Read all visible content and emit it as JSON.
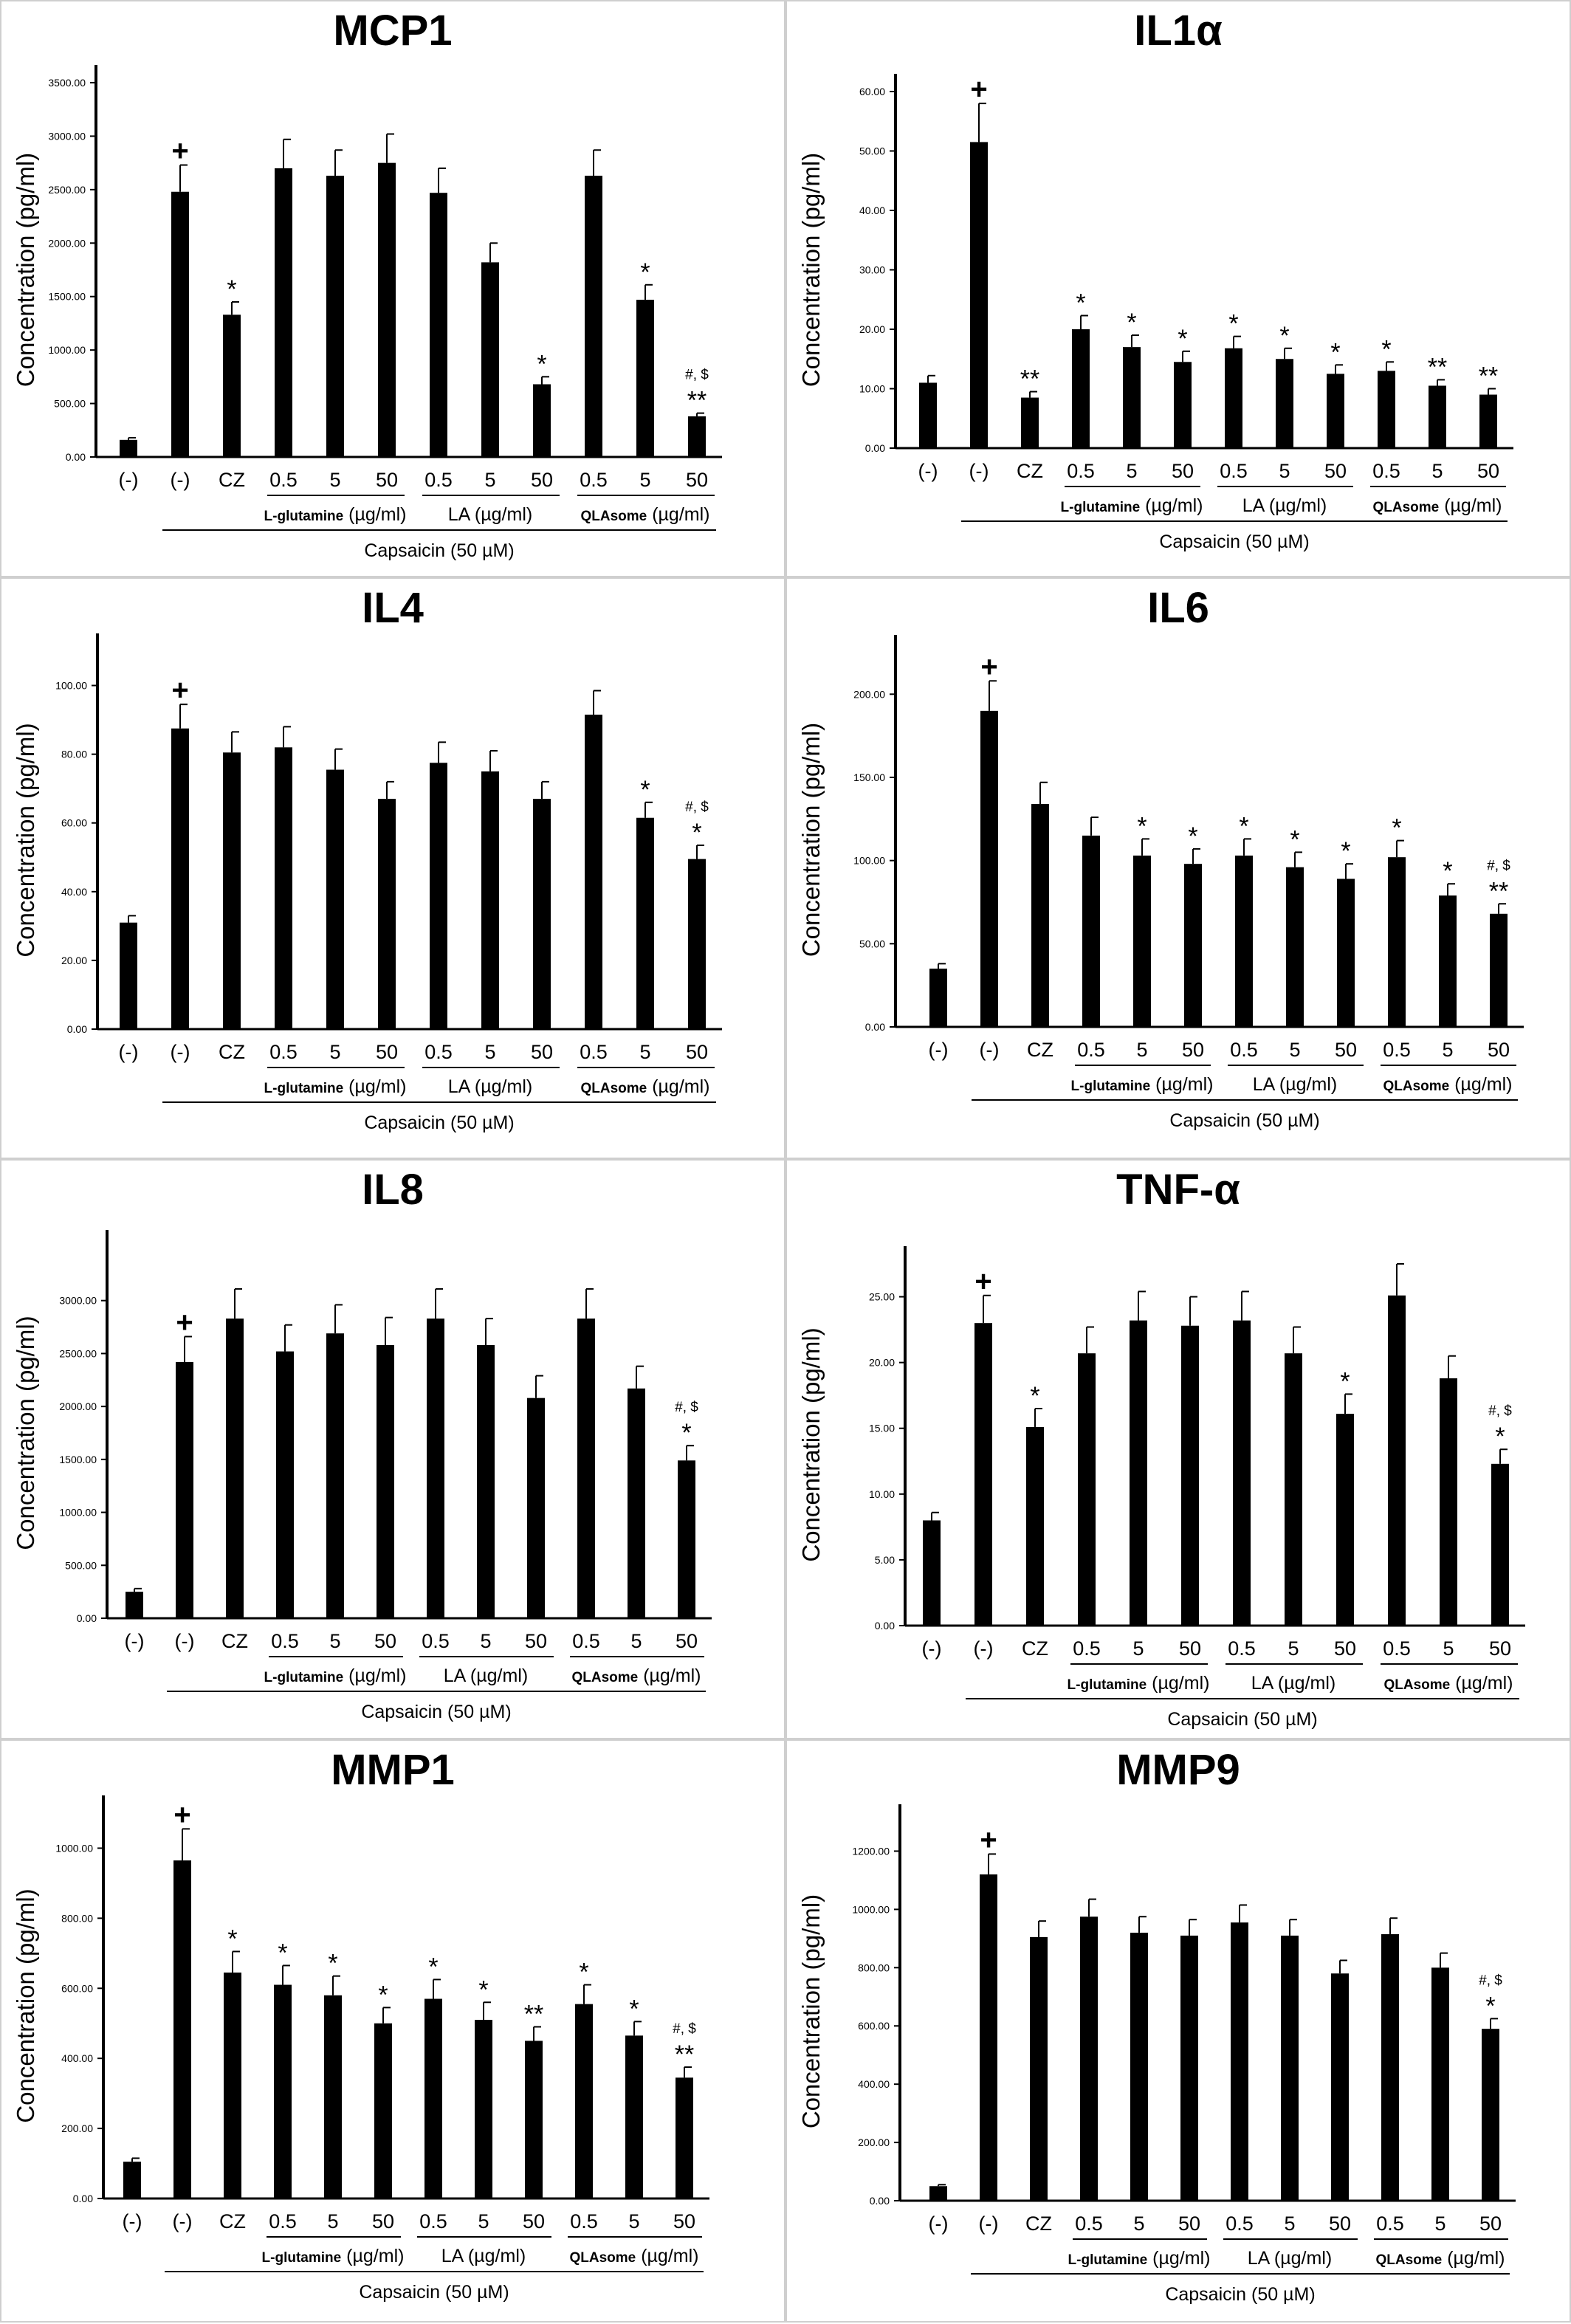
{
  "common": {
    "ylabel": "Concentration (pg/ml)",
    "categories": [
      "(-)",
      "(-)",
      "CZ",
      "0.5",
      "5",
      "50",
      "0.5",
      "5",
      "50",
      "0.5",
      "5",
      "50"
    ],
    "group_labels": [
      {
        "name_bold": "L-glutamine",
        "unit": " (µg/ml)"
      },
      {
        "name_bold": "",
        "unit": "LA (µg/ml)"
      },
      {
        "name_bold": "QLAsome",
        "unit": " (µg/ml)"
      }
    ],
    "capsaicin_label": "Capsaicin (50 µM)",
    "bar_color": "#000000"
  },
  "chart_data": [
    {
      "type": "bar",
      "title": "MCP1",
      "ylim": [
        0,
        3500
      ],
      "yticks": [
        "0.00",
        "500.00",
        "1000.00",
        "1500.00",
        "2000.00",
        "2500.00",
        "3000.00",
        "3500.00"
      ],
      "values": [
        160,
        2480,
        1330,
        2700,
        2630,
        2750,
        2470,
        1820,
        680,
        2630,
        1470,
        380
      ],
      "errors": [
        20,
        250,
        120,
        270,
        240,
        270,
        230,
        180,
        70,
        240,
        140,
        30
      ],
      "annotations": [
        [
          "",
          ""
        ],
        [
          "+",
          ""
        ],
        [
          "*",
          ""
        ],
        [
          "",
          ""
        ],
        [
          "",
          ""
        ],
        [
          "",
          ""
        ],
        [
          "",
          ""
        ],
        [
          "",
          ""
        ],
        [
          "*",
          ""
        ],
        [
          "",
          ""
        ],
        [
          "*",
          ""
        ],
        [
          "**",
          "#, $"
        ]
      ]
    },
    {
      "type": "bar",
      "title": "IL1α",
      "ylim": [
        0,
        60
      ],
      "yticks": [
        "0.00",
        "10.00",
        "20.00",
        "30.00",
        "40.00",
        "50.00",
        "60.00"
      ],
      "values": [
        11,
        51.5,
        8.5,
        20,
        17,
        14.5,
        16.8,
        15,
        12.5,
        13,
        10.5,
        9
      ],
      "errors": [
        1.2,
        6.5,
        1,
        2.3,
        2,
        1.8,
        2,
        1.8,
        1.5,
        1.5,
        1,
        1
      ],
      "annotations": [
        [
          "",
          ""
        ],
        [
          "+",
          ""
        ],
        [
          "**",
          ""
        ],
        [
          "*",
          ""
        ],
        [
          "*",
          ""
        ],
        [
          "*",
          ""
        ],
        [
          "*",
          ""
        ],
        [
          "*",
          ""
        ],
        [
          "*",
          ""
        ],
        [
          "*",
          ""
        ],
        [
          "**",
          ""
        ],
        [
          "**",
          ""
        ]
      ]
    },
    {
      "type": "bar",
      "title": "IL4",
      "ylim": [
        0,
        110
      ],
      "yticks": [
        "0.00",
        "20.00",
        "40.00",
        "60.00",
        "80.00",
        "100.00"
      ],
      "values": [
        31,
        87.5,
        80.5,
        82,
        75.5,
        67,
        77.5,
        75,
        67,
        91.5,
        61.5,
        49.5
      ],
      "errors": [
        2,
        7,
        6,
        6,
        6,
        5,
        6,
        6,
        5,
        7,
        4.5,
        4
      ],
      "annotations": [
        [
          "",
          ""
        ],
        [
          "+",
          ""
        ],
        [
          "",
          ""
        ],
        [
          "",
          ""
        ],
        [
          "",
          ""
        ],
        [
          "",
          ""
        ],
        [
          "",
          ""
        ],
        [
          "",
          ""
        ],
        [
          "",
          ""
        ],
        [
          "",
          ""
        ],
        [
          "*",
          ""
        ],
        [
          "*",
          "#, $"
        ]
      ]
    },
    {
      "type": "bar",
      "title": "IL6",
      "ylim": [
        0,
        225
      ],
      "yticks": [
        "0.00",
        "50.00",
        "100.00",
        "150.00",
        "200.00"
      ],
      "values": [
        35,
        190,
        134,
        115,
        103,
        98,
        103,
        96,
        89,
        102,
        79,
        68
      ],
      "errors": [
        3,
        18,
        13,
        11,
        10,
        9,
        10,
        9,
        9,
        10,
        7,
        6
      ],
      "annotations": [
        [
          "",
          ""
        ],
        [
          "+",
          ""
        ],
        [
          "",
          ""
        ],
        [
          "",
          ""
        ],
        [
          "*",
          ""
        ],
        [
          "*",
          ""
        ],
        [
          "*",
          ""
        ],
        [
          "*",
          ""
        ],
        [
          "*",
          ""
        ],
        [
          "*",
          ""
        ],
        [
          "*",
          ""
        ],
        [
          "**",
          "#, $"
        ]
      ]
    },
    {
      "type": "bar",
      "title": "IL8",
      "ylim": [
        0,
        3500
      ],
      "yticks": [
        "0.00",
        "500.00",
        "1000.00",
        "1500.00",
        "2000.00",
        "2500.00",
        "3000.00"
      ],
      "values": [
        250,
        2420,
        2830,
        2520,
        2690,
        2580,
        2830,
        2580,
        2080,
        2830,
        2170,
        1490
      ],
      "errors": [
        30,
        240,
        280,
        250,
        270,
        260,
        280,
        250,
        210,
        280,
        210,
        140
      ],
      "annotations": [
        [
          "",
          ""
        ],
        [
          "+",
          ""
        ],
        [
          "",
          ""
        ],
        [
          "",
          ""
        ],
        [
          "",
          ""
        ],
        [
          "",
          ""
        ],
        [
          "",
          ""
        ],
        [
          "",
          ""
        ],
        [
          "",
          ""
        ],
        [
          "",
          ""
        ],
        [
          "",
          ""
        ],
        [
          "*",
          "#, $"
        ]
      ]
    },
    {
      "type": "bar",
      "title": "TNF-α",
      "ylim": [
        0,
        27.5
      ],
      "yticks": [
        "0.00",
        "5.00",
        "10.00",
        "15.00",
        "20.00",
        "25.00"
      ],
      "values": [
        8,
        23,
        15.1,
        20.7,
        23.2,
        22.8,
        23.2,
        20.7,
        16.1,
        25.1,
        18.8,
        12.3
      ],
      "errors": [
        0.6,
        2.1,
        1.4,
        2,
        2.2,
        2.2,
        2.2,
        2,
        1.5,
        2.4,
        1.7,
        1.1
      ],
      "annotations": [
        [
          "",
          ""
        ],
        [
          "+",
          ""
        ],
        [
          "*",
          ""
        ],
        [
          "",
          ""
        ],
        [
          "",
          ""
        ],
        [
          "",
          ""
        ],
        [
          "",
          ""
        ],
        [
          "",
          ""
        ],
        [
          "*",
          ""
        ],
        [
          "",
          ""
        ],
        [
          "",
          ""
        ],
        [
          "*",
          "#, $"
        ]
      ]
    },
    {
      "type": "bar",
      "title": "MMP1",
      "ylim": [
        0,
        1100
      ],
      "yticks": [
        "0.00",
        "200.00",
        "400.00",
        "600.00",
        "800.00",
        "1000.00"
      ],
      "values": [
        105,
        965,
        645,
        610,
        580,
        500,
        570,
        510,
        450,
        555,
        465,
        345
      ],
      "errors": [
        10,
        90,
        60,
        55,
        55,
        45,
        55,
        50,
        40,
        55,
        40,
        30
      ],
      "annotations": [
        [
          "",
          ""
        ],
        [
          "+",
          ""
        ],
        [
          "*",
          ""
        ],
        [
          "*",
          ""
        ],
        [
          "*",
          ""
        ],
        [
          "*",
          ""
        ],
        [
          "*",
          ""
        ],
        [
          "*",
          ""
        ],
        [
          "**",
          ""
        ],
        [
          "*",
          ""
        ],
        [
          "*",
          ""
        ],
        [
          "**",
          "#, $"
        ]
      ]
    },
    {
      "type": "bar",
      "title": "MMP9",
      "ylim": [
        0,
        1300
      ],
      "yticks": [
        "0.00",
        "200.00",
        "400.00",
        "600.00",
        "800.00",
        "1000.00",
        "1200.00"
      ],
      "values": [
        50,
        1120,
        905,
        975,
        920,
        910,
        955,
        910,
        780,
        915,
        800,
        590
      ],
      "errors": [
        5,
        70,
        55,
        60,
        55,
        55,
        60,
        55,
        45,
        55,
        50,
        35
      ],
      "annotations": [
        [
          "",
          ""
        ],
        [
          "+",
          ""
        ],
        [
          "",
          ""
        ],
        [
          "",
          ""
        ],
        [
          "",
          ""
        ],
        [
          "",
          ""
        ],
        [
          "",
          ""
        ],
        [
          "",
          ""
        ],
        [
          "",
          ""
        ],
        [
          "",
          ""
        ],
        [
          "",
          ""
        ],
        [
          "*",
          "#, $"
        ]
      ]
    }
  ]
}
